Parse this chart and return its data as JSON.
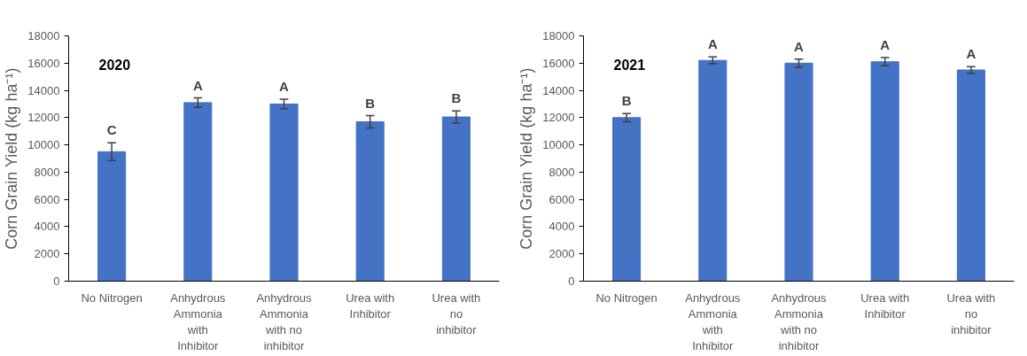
{
  "chart_data": [
    {
      "type": "bar",
      "title": "2020",
      "ylabel": "Corn Grain Yield (kg ha⁻¹)",
      "categories": [
        "No Nitrogen",
        "Anhydrous Ammonia with Inhibitor",
        "Anhydrous Ammonia with no inhibitor",
        "Urea with Inhibitor",
        "Urea with no inhibitor"
      ],
      "values": [
        9500,
        13100,
        13000,
        11700,
        12050
      ],
      "errors": [
        650,
        350,
        350,
        450,
        450
      ],
      "color": "#4472c4",
      "ylim": [
        0,
        18000
      ],
      "yticks": [
        0,
        2000,
        4000,
        6000,
        8000,
        10000,
        12000,
        14000,
        16000,
        18000
      ],
      "grid": false,
      "annotations": [
        {
          "text": "C",
          "x": "No Nitrogen",
          "y": 9500
        },
        {
          "text": "A",
          "x": "Anhydrous Ammonia with Inhibitor",
          "y": 13100
        },
        {
          "text": "A",
          "x": "Anhydrous Ammonia with no inhibitor",
          "y": 13000
        },
        {
          "text": "B",
          "x": "Urea with Inhibitor",
          "y": 11700
        },
        {
          "text": "B",
          "x": "Urea with no inhibitor",
          "y": 12050
        }
      ]
    },
    {
      "type": "bar",
      "title": "2021",
      "ylabel": "Corn Grain Yield (kg ha⁻¹)",
      "categories": [
        "No Nitrogen",
        "Anhydrous Ammonia with Inhibitor",
        "Anhydrous Ammonia with no inhibitor",
        "Urea with Inhibitor",
        "Urea with no inhibitor"
      ],
      "values": [
        12000,
        16200,
        16000,
        16100,
        15500
      ],
      "errors": [
        300,
        250,
        300,
        300,
        250
      ],
      "color": "#4472c4",
      "ylim": [
        0,
        18000
      ],
      "yticks": [
        0,
        2000,
        4000,
        6000,
        8000,
        10000,
        12000,
        14000,
        16000,
        18000
      ],
      "grid": false,
      "annotations": [
        {
          "text": "B",
          "x": "No Nitrogen",
          "y": 12000
        },
        {
          "text": "A",
          "x": "Anhydrous Ammonia with Inhibitor",
          "y": 16200
        },
        {
          "text": "A",
          "x": "Anhydrous Ammonia with no inhibitor",
          "y": 16000
        },
        {
          "text": "A",
          "x": "Urea with Inhibitor",
          "y": 16100
        },
        {
          "text": "A",
          "x": "Urea with no inhibitor",
          "y": 15500
        }
      ]
    }
  ]
}
